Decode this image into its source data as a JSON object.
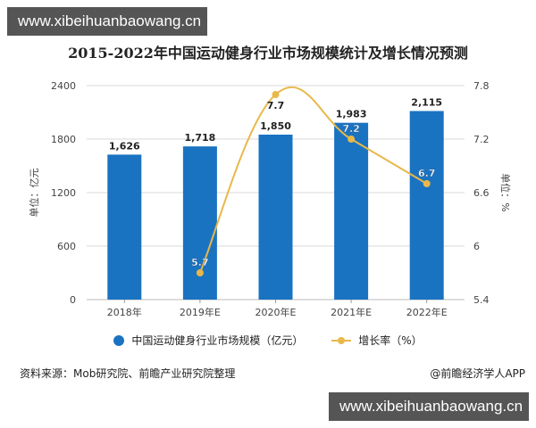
{
  "watermark": {
    "top": "www.xibeihuanbaowang.cn",
    "bottom": "www.xibeihuanbaowang.cn"
  },
  "footer": {
    "source": "资料来源：Mob研究院、前瞻产业研究院整理",
    "credit": "@前瞻经济学人APP"
  },
  "colors": {
    "bar": "#1a73c1",
    "line": "#e8b84a",
    "grid": "#d9d9d9",
    "watermark_bg": "#555555"
  },
  "chart_data": {
    "type": "bar+line",
    "title": "2015-2022年中国运动健身行业市场规模统计及增长情况预测",
    "categories": [
      "2018年",
      "2019年E",
      "2020年E",
      "2021年E",
      "2022年E"
    ],
    "series": [
      {
        "name": "中国运动健身行业市场规模（亿元）",
        "type": "bar",
        "axis": "left",
        "values": [
          1626,
          1718,
          1850,
          1983,
          2115
        ],
        "labels": [
          "1,626",
          "1,718",
          "1,850",
          "1,983",
          "2,115"
        ]
      },
      {
        "name": "增长率（%）",
        "type": "line",
        "axis": "right",
        "values": [
          null,
          5.7,
          7.7,
          7.2,
          6.7
        ],
        "labels": [
          "",
          "5.7",
          "7.7",
          "7.2",
          "6.7"
        ]
      }
    ],
    "ylabel_left": "单位：亿元",
    "ylabel_right": "单位：%",
    "ylim_left": [
      0,
      2400
    ],
    "yticks_left": [
      "0",
      "600",
      "1200",
      "1800",
      "2400"
    ],
    "ylim_right": [
      5.4,
      7.8
    ],
    "yticks_right": [
      "5.4",
      "6",
      "6.6",
      "7.2",
      "7.8"
    ],
    "grid": true,
    "legend_position": "bottom"
  }
}
